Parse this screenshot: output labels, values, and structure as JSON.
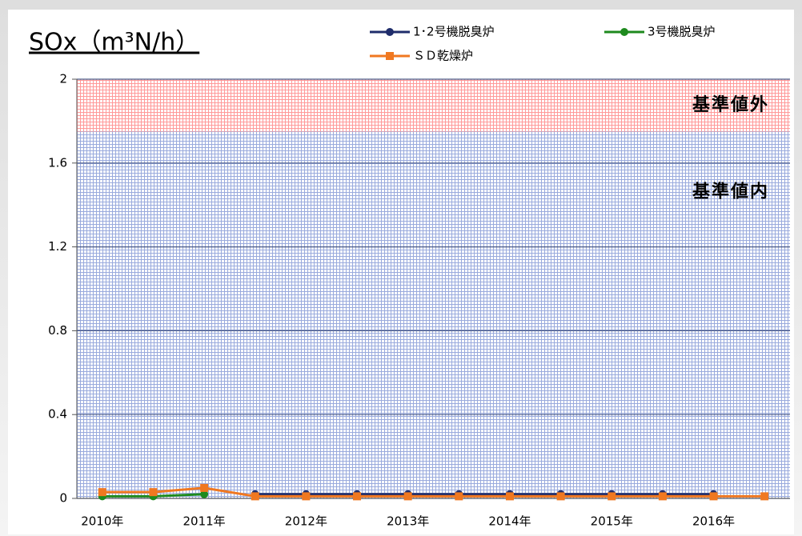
{
  "chart_data": {
    "type": "line",
    "title": "SOx（m³N/h）",
    "categories": [
      "2010年",
      null,
      "2011年",
      null,
      "2012年",
      null,
      "2013年",
      null,
      "2014年",
      null,
      "2015年",
      null,
      "2016年",
      null
    ],
    "series": [
      {
        "name": "1･2号機脱臭炉",
        "color": "#1f2d6b",
        "marker": "circle",
        "values": [
          null,
          null,
          null,
          0.02,
          0.02,
          0.02,
          0.02,
          0.02,
          0.02,
          0.02,
          0.02,
          0.02,
          0.02,
          null
        ]
      },
      {
        "name": "3号機脱臭炉",
        "color": "#1e8a1e",
        "marker": "circle",
        "values": [
          0.01,
          0.01,
          0.02,
          null,
          null,
          null,
          null,
          null,
          null,
          null,
          null,
          null,
          null,
          null
        ]
      },
      {
        "name": "ＳＤ乾燥炉",
        "color": "#f07820",
        "marker": "square",
        "values": [
          0.03,
          0.03,
          0.05,
          0.01,
          0.01,
          0.01,
          0.01,
          0.01,
          0.01,
          0.01,
          0.01,
          0.01,
          0.01,
          0.01
        ]
      }
    ],
    "bands": [
      {
        "label": "基準値外",
        "from": 1.75,
        "to": 2,
        "color": "#ff9999",
        "text_color": "#ff0000"
      },
      {
        "label": "基準値内",
        "from": 0,
        "to": 1.75,
        "color": "#99aadd",
        "text_color": "#1a3fbf"
      }
    ],
    "ylim": [
      0,
      2
    ],
    "yticks": [
      0,
      0.4,
      0.8,
      1.2,
      1.6,
      2
    ],
    "grid": true
  }
}
